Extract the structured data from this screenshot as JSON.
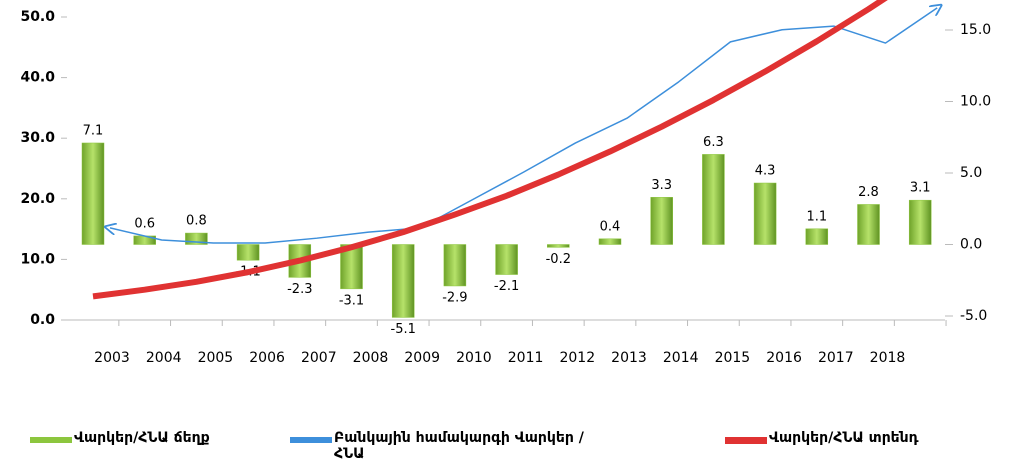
{
  "chart_data": {
    "type": "combo",
    "categories": [
      "2003",
      "2004",
      "2005",
      "2006",
      "2007",
      "2008",
      "2009",
      "2010",
      "2011",
      "2012",
      "2013",
      "2014",
      "2015",
      "2016",
      "2017",
      "2018",
      null
    ],
    "series": [
      {
        "name": "Վարկեր/ՀՆԱ ճեղք",
        "type": "bar",
        "axis": "y2",
        "color": "#8cc63e",
        "values": [
          7.1,
          0.6,
          0.8,
          -1.1,
          -2.3,
          -3.1,
          -5.1,
          -2.9,
          -2.1,
          -0.2,
          0.4,
          3.3,
          6.3,
          4.3,
          1.1,
          2.8,
          3.1
        ]
      },
      {
        "name": "Բանկային համակարգի Վարկեր / ՀՆԱ",
        "type": "line",
        "color": "#3d8fdb",
        "values": [
          15.2,
          13.2,
          12.7,
          12.7,
          13.5,
          14.5,
          15.2,
          19.8,
          24.4,
          29.2,
          33.3,
          39.3,
          45.9,
          47.9,
          48.5,
          45.7,
          51.5
        ]
      },
      {
        "name": "Վարկեր/ՀՆԱ տրենդ",
        "type": "line",
        "color": "#e03232",
        "values": [
          3.9,
          5.0,
          6.3,
          7.9,
          9.8,
          12.0,
          14.5,
          17.4,
          20.5,
          24.0,
          27.8,
          31.9,
          36.3,
          41.0,
          46.0,
          51.3,
          56.9
        ]
      }
    ],
    "ylim": [
      0,
      50
    ],
    "yticks": [
      {
        "value": 0,
        "label": "0.0"
      },
      {
        "value": 10,
        "label": "10.0"
      },
      {
        "value": 20,
        "label": "20.0"
      },
      {
        "value": 30,
        "label": "30.0"
      },
      {
        "value": 40,
        "label": "40.0"
      },
      {
        "value": 50,
        "label": "50.0"
      }
    ],
    "y2lim": [
      -5,
      15
    ],
    "y2ticks": [
      {
        "value": -5,
        "label": "-5.0"
      },
      {
        "value": 0,
        "label": "0.0"
      },
      {
        "value": 5,
        "label": "5.0"
      },
      {
        "value": 10,
        "label": "10.0"
      },
      {
        "value": 15,
        "label": "15.0"
      }
    ],
    "legend": "bottom"
  }
}
